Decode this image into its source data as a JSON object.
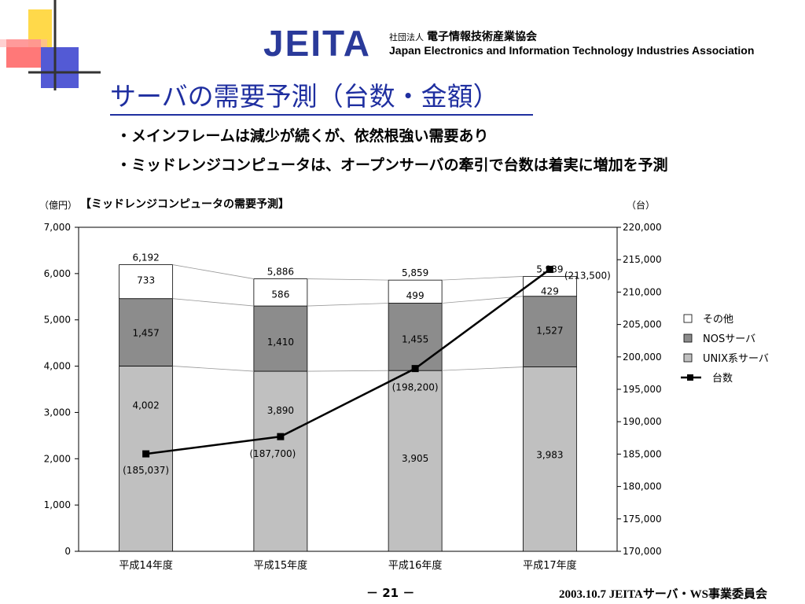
{
  "header": {
    "logo_mark": "JEITA",
    "org_type": "社団法人",
    "org_name_jp": "電子情報技術産業協会",
    "org_name_en": "Japan Electronics and Information Technology Industries Association"
  },
  "slide": {
    "title": "サーバの需要予測（台数・金額）",
    "bullets": [
      "・メインフレームは減少が続くが、依然根強い需要あり",
      "・ミッドレンジコンピュータは、オープンサーバの牽引で台数は着実に増加を予測"
    ]
  },
  "chart_data": {
    "type": "bar",
    "stacked": true,
    "title": "【ミッドレンジコンピュータの需要予測】",
    "ylabel": "（億円）",
    "y2label": "（台）",
    "categories": [
      "平成14年度",
      "平成15年度",
      "平成16年度",
      "平成17年度"
    ],
    "ylim": [
      0,
      7000
    ],
    "yticks": [
      "0",
      "1,000",
      "2,000",
      "3,000",
      "4,000",
      "5,000",
      "6,000",
      "7,000"
    ],
    "y2lim": [
      170000,
      220000
    ],
    "y2ticks": [
      "170,000",
      "175,000",
      "180,000",
      "185,000",
      "190,000",
      "195,000",
      "200,000",
      "205,000",
      "210,000",
      "215,000",
      "220,000"
    ],
    "series": [
      {
        "name": "UNIX系サーバ",
        "values": [
          4002,
          3890,
          3905,
          3983
        ],
        "labels": [
          "4,002",
          "3,890",
          "3,905",
          "3,983"
        ],
        "color": "#c0c0c0"
      },
      {
        "name": "NOSサーバ",
        "values": [
          1457,
          1410,
          1455,
          1527
        ],
        "labels": [
          "1,457",
          "1,410",
          "1,455",
          "1,527"
        ],
        "color": "#8c8c8c"
      },
      {
        "name": "その他",
        "values": [
          733,
          586,
          499,
          429
        ],
        "labels": [
          "733",
          "586",
          "499",
          "429"
        ],
        "color": "#ffffff"
      }
    ],
    "totals": [
      "6,192",
      "5,886",
      "5,859",
      "5,939"
    ],
    "line": {
      "name": "台数",
      "axis": "right",
      "values": [
        185037,
        187700,
        198200,
        213500
      ],
      "labels": [
        "(185,037)",
        "(187,700)",
        "(198,200)",
        "(213,500)"
      ],
      "color": "#000000"
    },
    "legend_position": "right",
    "grid": false
  },
  "footer": {
    "page": "－ 21 －",
    "right": "2003.10.7  JEITAサーバ・WS事業委員会"
  }
}
